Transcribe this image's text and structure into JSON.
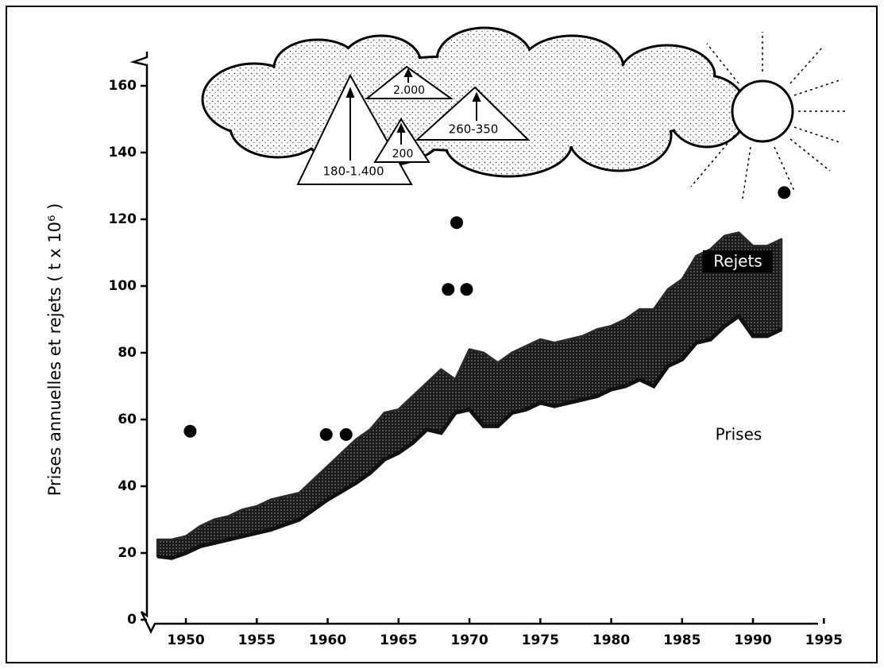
{
  "chart_data": {
    "type": "area",
    "y_label": "Prises annuelles et rejets ( t x 10⁶ )",
    "xlim": [
      1947,
      1997
    ],
    "xticks": [
      1950,
      1955,
      1960,
      1965,
      1970,
      1975,
      1980,
      1985,
      1990,
      1995
    ],
    "ylim": [
      0,
      165
    ],
    "yticks": [
      0,
      20,
      40,
      60,
      80,
      100,
      120,
      140,
      160
    ],
    "x": [
      1948,
      1949,
      1950,
      1951,
      1952,
      1953,
      1954,
      1955,
      1956,
      1957,
      1958,
      1959,
      1960,
      1961,
      1962,
      1963,
      1964,
      1965,
      1966,
      1967,
      1968,
      1969,
      1970,
      1971,
      1972,
      1973,
      1974,
      1975,
      1976,
      1977,
      1978,
      1979,
      1980,
      1981,
      1982,
      1983,
      1984,
      1985,
      1986,
      1987,
      1988,
      1989,
      1990,
      1991,
      1992
    ],
    "series": [
      {
        "name": "Prises",
        "color": "#111111",
        "values": [
          19,
          18.5,
          20,
          22,
          23,
          24,
          25,
          26,
          27,
          28.5,
          30,
          33,
          36,
          38.5,
          41,
          44,
          48,
          50,
          53,
          57,
          56,
          62,
          63,
          58,
          58,
          62,
          63,
          65,
          64,
          65,
          66,
          67,
          69,
          70,
          72,
          70,
          76,
          78,
          83,
          84,
          88,
          91,
          85,
          85,
          87
        ]
      },
      {
        "name": "Rejets",
        "color": "#2a2a2a",
        "values": [
          5,
          5.5,
          5,
          6,
          7,
          7,
          8,
          8,
          9,
          8.5,
          8,
          9,
          10,
          11.5,
          13,
          13,
          14,
          13,
          14,
          14,
          19,
          10,
          18,
          22,
          19,
          18,
          19,
          19,
          19,
          19,
          19,
          20,
          19,
          20,
          21,
          23,
          23,
          24,
          26,
          27,
          27,
          25,
          27,
          27,
          27
        ]
      }
    ],
    "points": {
      "color": "#000000",
      "x": [
        1950.3,
        1959.9,
        1961.3,
        1968.5,
        1969.1,
        1969.8,
        1992.2
      ],
      "y": [
        56.5,
        55.5,
        55.5,
        99,
        119,
        99,
        128
      ]
    },
    "annotations": [
      "180-1.400",
      "2.000",
      "200",
      "260-350"
    ]
  }
}
